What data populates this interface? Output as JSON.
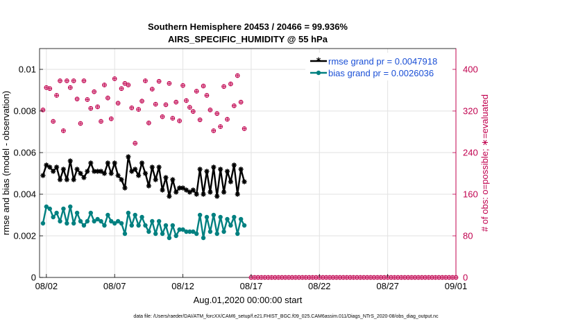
{
  "chart_data": {
    "type": "line",
    "title": "Southern Hemisphere 20453 / 20466 = 99.936%",
    "subtitle": "AIRS_SPECIFIC_HUMIDITY @ 55 hPa",
    "xlabel": "Aug.01,2020 00:00:00 start",
    "ylabel": "rmse and bias (model - observation)",
    "y2label": "# of obs: o=possible; ∗=evaluated",
    "footer": "data file: /Users/raeder/DAI/ATM_forcXX/CAM6_setup/f.e21.FHIST_BGC.f09_025.CAM6assim.011/Diags_NTrS_2020-08/obs_diag_output.nc",
    "x_ticks": [
      "08/02",
      "08/07",
      "08/12",
      "08/17",
      "08/22",
      "08/27",
      "09/01"
    ],
    "x_tick_days": [
      1,
      6,
      11,
      16,
      21,
      26,
      31
    ],
    "xlim": [
      0.5,
      31.0
    ],
    "ylim": [
      0,
      0.011
    ],
    "y_ticks": [
      "0",
      "0.002",
      "0.004",
      "0.006",
      "0.008",
      "0.01"
    ],
    "y_tick_values": [
      0,
      0.002,
      0.004,
      0.006,
      0.008,
      0.01
    ],
    "y2lim": [
      0,
      440
    ],
    "y2_ticks": [
      "0",
      "80",
      "160",
      "240",
      "320",
      "400"
    ],
    "y2_tick_values": [
      0,
      80,
      160,
      240,
      320,
      400
    ],
    "x_days": [
      0.75,
      1.0,
      1.25,
      1.5,
      1.75,
      2.0,
      2.25,
      2.5,
      2.75,
      3.0,
      3.25,
      3.5,
      3.75,
      4.0,
      4.25,
      4.5,
      4.75,
      5.0,
      5.25,
      5.5,
      5.75,
      6.0,
      6.25,
      6.5,
      6.75,
      7.0,
      7.25,
      7.5,
      7.75,
      8.0,
      8.25,
      8.5,
      8.75,
      9.0,
      9.25,
      9.5,
      9.75,
      10.0,
      10.25,
      10.5,
      10.75,
      11.0,
      11.25,
      11.5,
      11.75,
      12.0,
      12.25,
      12.5,
      12.75,
      13.0,
      13.25,
      13.5,
      13.75,
      14.0,
      14.25,
      14.5,
      14.75,
      15.0,
      15.25,
      15.5
    ],
    "series": [
      {
        "name": "rmse grand pr = 0.0047918",
        "color": "#000000",
        "marker": "star",
        "values": [
          0.0049,
          0.0054,
          0.0053,
          0.0051,
          0.0053,
          0.0047,
          0.0052,
          0.0047,
          0.0056,
          0.0047,
          0.0052,
          0.005,
          0.0048,
          0.0051,
          0.0055,
          0.0051,
          0.0051,
          0.0051,
          0.005,
          0.0055,
          0.005,
          0.0055,
          0.0049,
          0.0047,
          0.0043,
          0.0058,
          0.0051,
          0.0052,
          0.0049,
          0.0055,
          0.005,
          0.0044,
          0.0053,
          0.0047,
          0.0053,
          0.0042,
          0.0048,
          0.0039,
          0.0047,
          0.0041,
          0.0043,
          0.0043,
          0.0042,
          0.0041,
          0.0042,
          0.004,
          0.0052,
          0.004,
          0.0051,
          0.0041,
          0.0053,
          0.0039,
          0.0052,
          0.0041,
          0.0051,
          0.0046,
          0.0054,
          0.004,
          0.0052,
          0.0046
        ]
      },
      {
        "name": "bias grand pr = 0.0026036",
        "color": "#008080",
        "marker": "circle",
        "values": [
          0.0026,
          0.0034,
          0.0033,
          0.0029,
          0.0031,
          0.0027,
          0.0033,
          0.0026,
          0.0034,
          0.0026,
          0.0031,
          0.0027,
          0.0025,
          0.0027,
          0.0031,
          0.0027,
          0.0028,
          0.0027,
          0.0025,
          0.003,
          0.0027,
          0.0026,
          0.0027,
          0.0026,
          0.0021,
          0.0031,
          0.0025,
          0.003,
          0.0025,
          0.0029,
          0.0025,
          0.0022,
          0.0027,
          0.0021,
          0.0027,
          0.0021,
          0.0025,
          0.0019,
          0.0025,
          0.002,
          0.0023,
          0.0023,
          0.0022,
          0.0022,
          0.0022,
          0.0021,
          0.003,
          0.0019,
          0.0029,
          0.0022,
          0.003,
          0.0021,
          0.0029,
          0.0022,
          0.0028,
          0.0025,
          0.0029,
          0.0021,
          0.0028,
          0.0025
        ]
      }
    ],
    "obs_evaluated_values": [
      322,
      365,
      363,
      300,
      350,
      378,
      282,
      378,
      365,
      378,
      343,
      296,
      378,
      342,
      325,
      357,
      328,
      300,
      370,
      345,
      305,
      382,
      335,
      363,
      373,
      370,
      326,
      258,
      323,
      339,
      378,
      297,
      362,
      333,
      377,
      309,
      332,
      373,
      306,
      337,
      301,
      369,
      340,
      327,
      319,
      358,
      303,
      368,
      350,
      322,
      282,
      315,
      290,
      367,
      304,
      372,
      330,
      388,
      337,
      286
    ],
    "obs_tail_start_day": 16.0,
    "obs_tail_step_day": 0.25,
    "obs_tail_value": 0
  },
  "colors": {
    "obs": "#c0004e",
    "legend_text": "#1a4fd6",
    "grid": "#e2e2e2"
  }
}
